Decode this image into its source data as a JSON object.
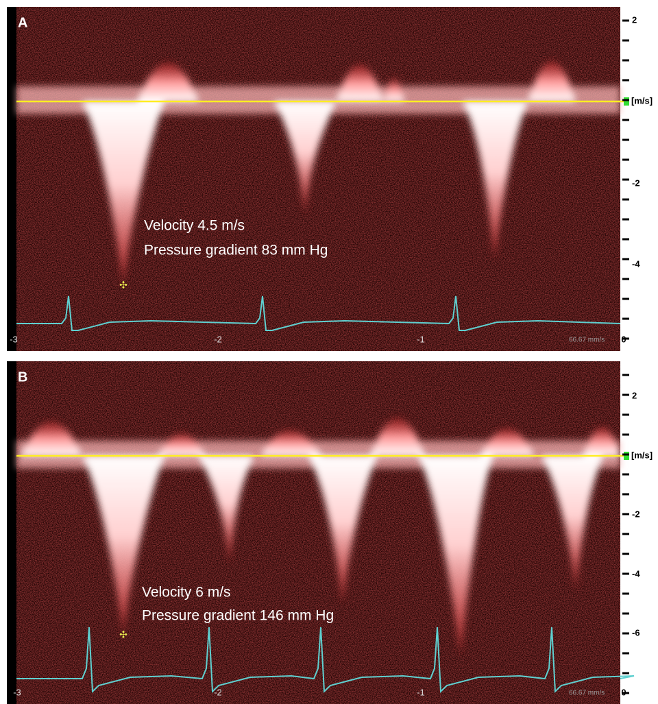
{
  "panels": [
    {
      "label": "A",
      "annotation": [
        "Velocity 4.5 m/s",
        "Pressure gradient 83 mm Hg"
      ],
      "velocity_axis": {
        "unit": "[m/s]",
        "ticks": [
          "2",
          "-2",
          "-4"
        ]
      },
      "time_axis": [
        "-3",
        "-2",
        "-1",
        "0"
      ],
      "sweep_speed": "66.67 mm/s"
    },
    {
      "label": "B",
      "annotation": [
        "Velocity 6 m/s",
        "Pressure gradient 146 mm Hg"
      ],
      "velocity_axis": {
        "unit": "[m/s]",
        "ticks": [
          "2",
          "-2",
          "-4",
          "-6"
        ]
      },
      "time_axis": [
        "-3",
        "-2",
        "-1",
        "0"
      ],
      "sweep_speed": "66.67 mm/s"
    }
  ]
}
